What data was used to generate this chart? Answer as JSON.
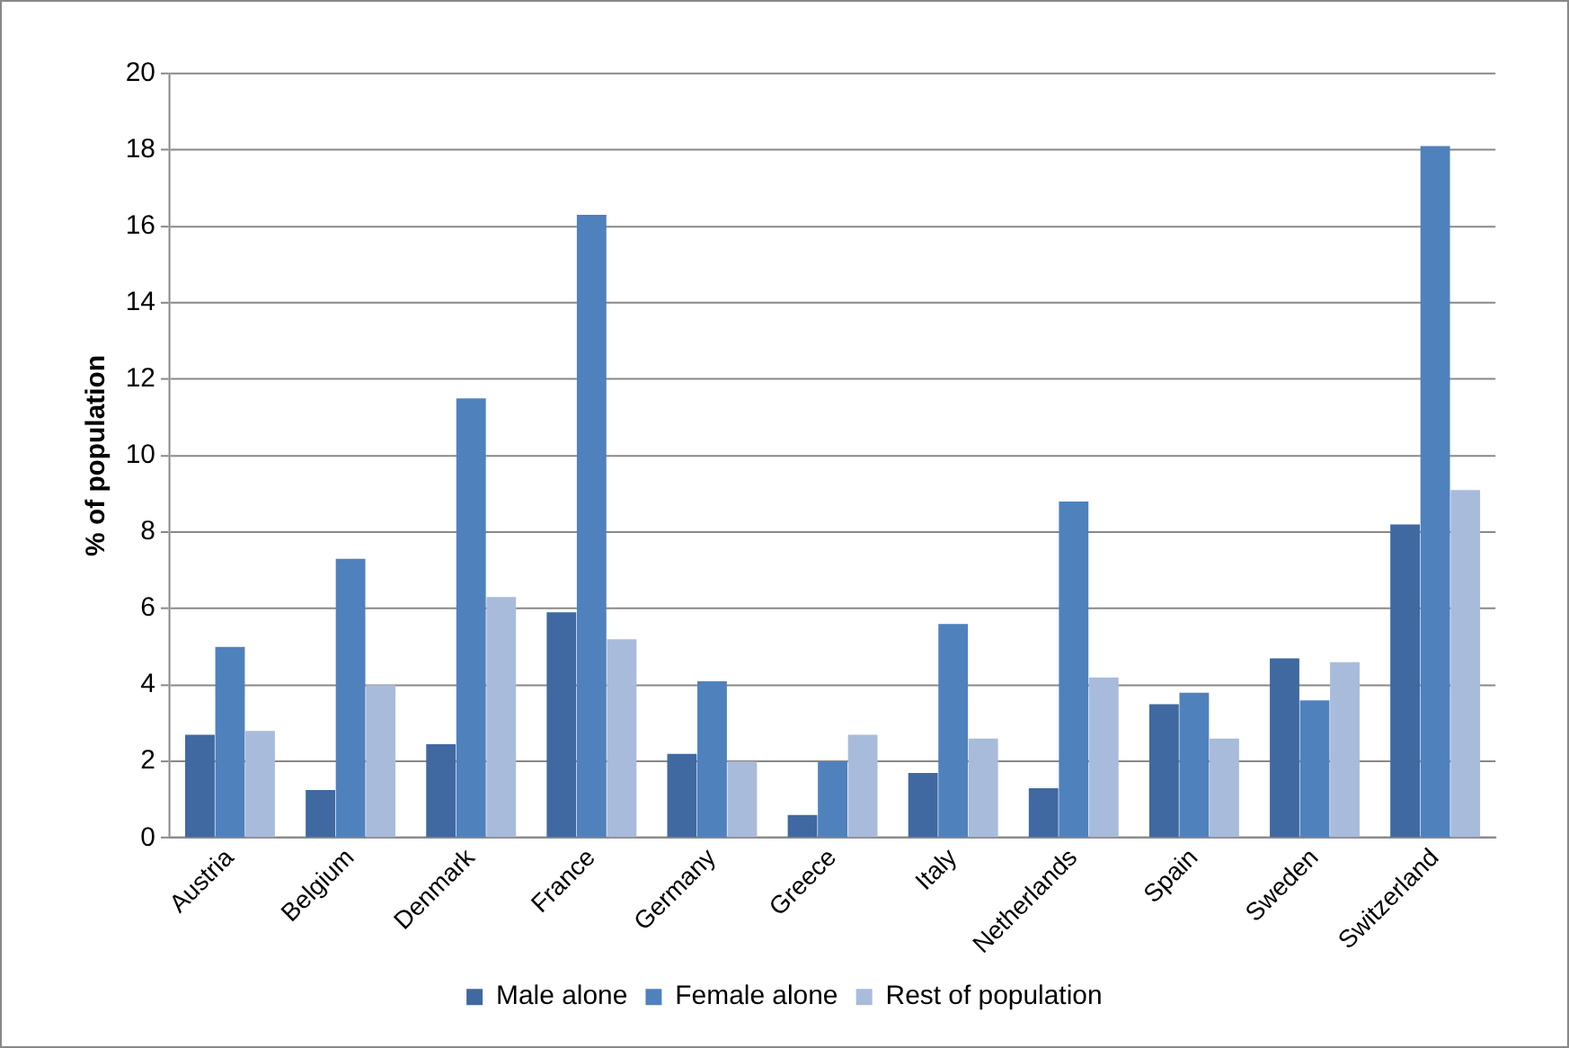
{
  "chart_data": {
    "type": "bar",
    "ylabel": "% of population",
    "categories": [
      "Austria",
      "Belgium",
      "Denmark",
      "France",
      "Germany",
      "Greece",
      "Italy",
      "Netherlands",
      "Spain",
      "Sweden",
      "Switzerland"
    ],
    "series": [
      {
        "name": "Male alone",
        "color": "#3f69a0",
        "values": [
          2.7,
          1.25,
          2.45,
          5.9,
          2.2,
          0.6,
          1.7,
          1.3,
          3.5,
          4.7,
          8.2
        ]
      },
      {
        "name": "Female alone",
        "color": "#4f81bd",
        "values": [
          5.0,
          7.3,
          11.5,
          16.3,
          4.1,
          2.0,
          5.6,
          8.8,
          3.8,
          3.6,
          18.1
        ]
      },
      {
        "name": "Rest of population",
        "color": "#a9bbdb",
        "values": [
          2.8,
          4.0,
          6.3,
          5.2,
          2.0,
          2.7,
          2.6,
          4.2,
          2.6,
          4.6,
          9.1
        ]
      }
    ],
    "ylim": [
      0,
      20
    ],
    "yticks": [
      0,
      2,
      4,
      6,
      8,
      10,
      12,
      14,
      16,
      18,
      20
    ],
    "grid": "y",
    "legend": "bottom"
  }
}
